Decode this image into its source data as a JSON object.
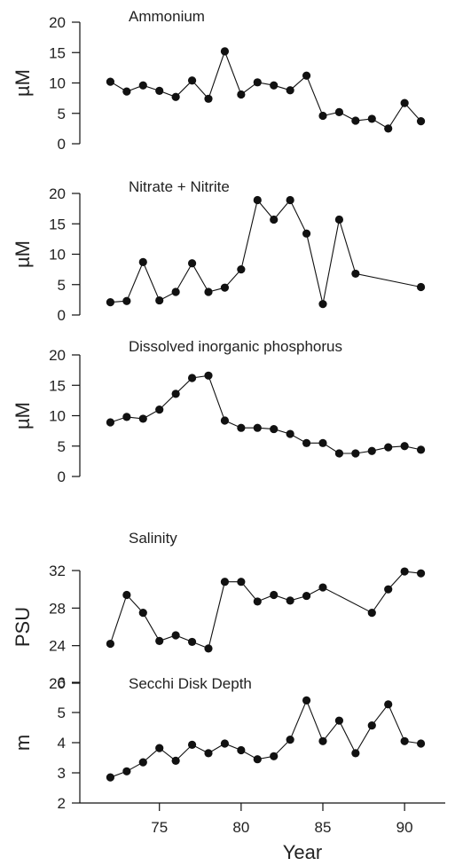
{
  "chart_data": [
    {
      "type": "line",
      "title": "Ammonium",
      "ylabel": "µM",
      "ylim": [
        0,
        20
      ],
      "yticks": [
        "0",
        "5",
        "10",
        "15",
        "20"
      ],
      "x": [
        72,
        73,
        74,
        75,
        76,
        77,
        78,
        79,
        80,
        81,
        82,
        83,
        84,
        85,
        86,
        87,
        88,
        89,
        90,
        91
      ],
      "y": [
        10.2,
        8.6,
        9.6,
        8.7,
        7.7,
        10.4,
        7.4,
        15.2,
        8.1,
        10.1,
        9.6,
        8.8,
        11.2,
        4.6,
        5.2,
        3.8,
        4.1,
        2.5,
        6.7,
        3.7
      ]
    },
    {
      "type": "line",
      "title": "Nitrate + Nitrite",
      "ylabel": "µM",
      "ylim": [
        0,
        20
      ],
      "yticks": [
        "0",
        "5",
        "10",
        "15",
        "20"
      ],
      "x": [
        72,
        73,
        74,
        75,
        76,
        77,
        78,
        79,
        80,
        81,
        82,
        83,
        84,
        85,
        86,
        87,
        91
      ],
      "y": [
        2.1,
        2.3,
        8.7,
        2.4,
        3.8,
        8.5,
        3.8,
        4.5,
        7.5,
        18.9,
        15.7,
        18.9,
        13.4,
        1.8,
        15.7,
        6.8,
        4.6
      ]
    },
    {
      "type": "line",
      "title": "Dissolved inorganic phosphorus",
      "ylabel": "µM",
      "ylim": [
        0,
        20
      ],
      "yticks": [
        "0",
        "5",
        "10",
        "15",
        "20"
      ],
      "x": [
        72,
        73,
        74,
        75,
        76,
        77,
        78,
        79,
        80,
        81,
        82,
        83,
        84,
        85,
        86,
        87,
        88,
        89,
        90,
        91
      ],
      "y": [
        8.9,
        9.8,
        9.5,
        11.0,
        13.6,
        16.2,
        16.6,
        9.2,
        8.0,
        8.0,
        7.8,
        7.0,
        5.5,
        5.5,
        3.8,
        3.8,
        4.2,
        4.8,
        5.0,
        4.4
      ]
    },
    {
      "type": "line",
      "title": "Salinity",
      "ylabel": "PSU",
      "ylim": [
        20,
        32
      ],
      "yticks": [
        "20",
        "24",
        "28",
        "32"
      ],
      "x": [
        72,
        73,
        74,
        75,
        76,
        77,
        78,
        79,
        80,
        81,
        82,
        83,
        84,
        85,
        88,
        89,
        90,
        91
      ],
      "y": [
        24.2,
        29.4,
        27.5,
        24.5,
        25.1,
        24.4,
        23.7,
        30.8,
        30.8,
        28.7,
        29.4,
        28.8,
        29.3,
        30.2,
        27.5,
        30.0,
        31.9,
        31.7
      ]
    },
    {
      "type": "line",
      "title": "Secchi Disk Depth",
      "ylabel": "m",
      "ylim": [
        2,
        6
      ],
      "yticks": [
        "2",
        "3",
        "4",
        "5",
        "6"
      ],
      "xlabel": "Year",
      "xticks": [
        "75",
        "80",
        "85",
        "90"
      ],
      "xlim": [
        71,
        92
      ],
      "x": [
        72,
        73,
        74,
        75,
        76,
        77,
        78,
        79,
        80,
        81,
        82,
        83,
        84,
        85,
        86,
        87,
        88,
        89,
        90,
        91
      ],
      "y": [
        2.85,
        3.05,
        3.35,
        3.82,
        3.4,
        3.93,
        3.65,
        3.97,
        3.75,
        3.45,
        3.55,
        4.1,
        5.4,
        4.05,
        4.73,
        3.65,
        4.57,
        5.27,
        4.05,
        3.97
      ]
    }
  ]
}
